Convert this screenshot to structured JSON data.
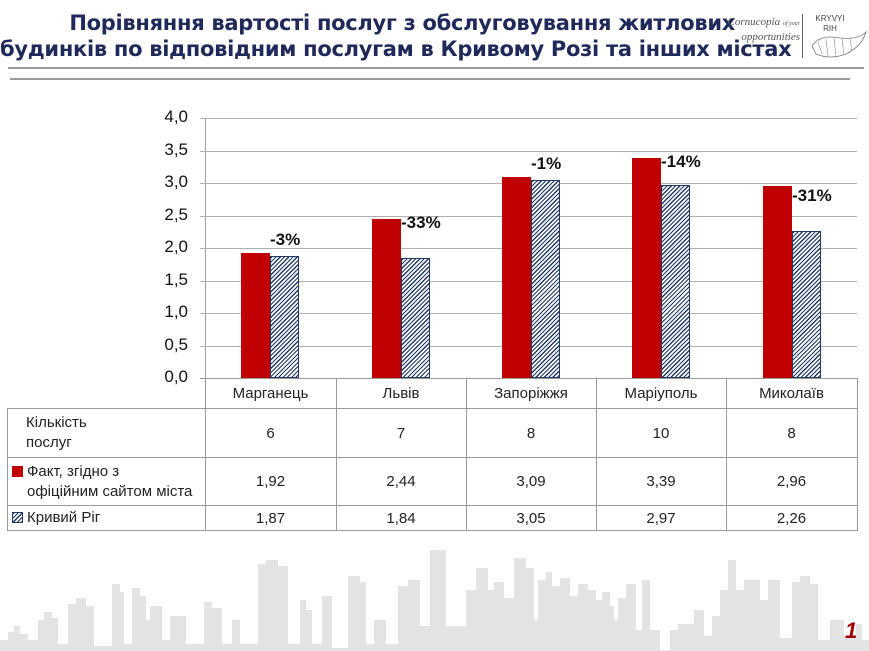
{
  "header": {
    "title_line1": "Порівняння вартості послуг з обслуговування житлових",
    "title_line2": "будинків по відповідним послугам в Кривому Розі та інших містах",
    "logo": {
      "slogan_word1": "Cornucopia",
      "slogan_small": "of your",
      "slogan_word2": "opportunities",
      "city_line1": "KRYVYI",
      "city_line2": "RIH"
    }
  },
  "colors": {
    "fact": "#c00000",
    "kryvyi_rih": "#1f3864",
    "title": "#1f2a5a",
    "page_number": "#a00000"
  },
  "chart_data": {
    "type": "bar",
    "title": "Порівняння вартості послуг з обслуговування житлових будинків по відповідним послугам в Кривому Розі та інших містах",
    "xlabel": "",
    "ylabel": "",
    "ylim": [
      0,
      4.0
    ],
    "yticks": [
      "0,0",
      "0,5",
      "1,0",
      "1,5",
      "2,0",
      "2,5",
      "3,0",
      "3,5",
      "4,0"
    ],
    "grid": true,
    "legend_position": "data-table",
    "categories": [
      "Марганець",
      "Львів",
      "Запоріжжя",
      "Маріуполь",
      "Миколаїв"
    ],
    "series": [
      {
        "name": "Факт, згідно з офіційним сайтом міста",
        "values": [
          1.92,
          2.44,
          3.09,
          3.39,
          2.96
        ],
        "pattern": "solid-red"
      },
      {
        "name": "Кривий Ріг",
        "values": [
          1.87,
          1.84,
          3.05,
          2.97,
          2.26
        ],
        "pattern": "hatched-navy"
      }
    ],
    "annotations": [
      "-3%",
      "-33%",
      "-1%",
      "-14%",
      "-31%"
    ],
    "table": {
      "rows": [
        {
          "label_line1": "Кількість",
          "label_line2": "послуг",
          "values": [
            "6",
            "7",
            "8",
            "10",
            "8"
          ]
        },
        {
          "label_line1": "Факт, згідно з",
          "label_line2": "офіційним сайтом міста",
          "values": [
            "1,92",
            "2,44",
            "3,09",
            "3,39",
            "2,96"
          ]
        },
        {
          "label_line1": "Кривий Ріг",
          "label_line2": "",
          "values": [
            "1,87",
            "1,84",
            "3,05",
            "2,97",
            "2,26"
          ]
        }
      ]
    }
  },
  "footer": {
    "page_number": "1"
  }
}
